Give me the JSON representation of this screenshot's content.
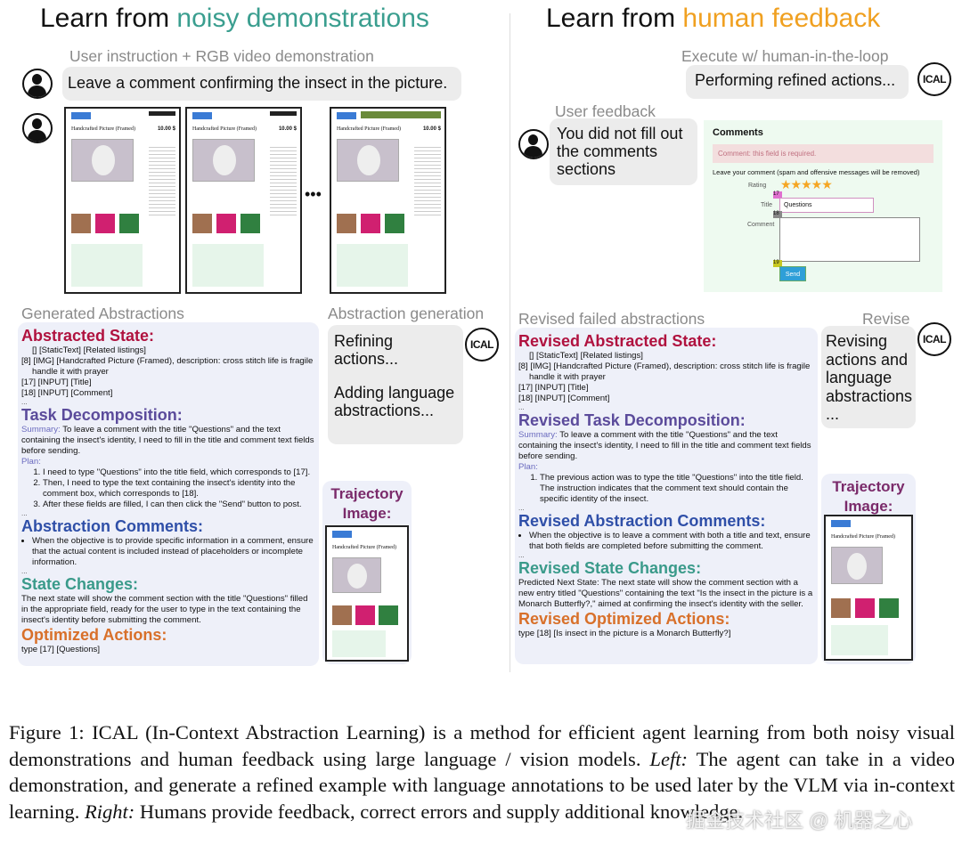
{
  "left": {
    "title_prefix": "Learn from ",
    "title_highlight": "noisy demonstrations",
    "instruction_label": "User instruction + RGB video demonstration",
    "instruction": "Leave a comment confirming the insect in the picture.",
    "ellipsis": "•••",
    "thumb_title": "Handcrafted Picture (Framed)",
    "thumb_price": "10.00 $",
    "generated_label": "Generated Abstractions",
    "generation_label": "Abstraction generation",
    "generation_bubble": [
      "Refining actions...",
      "Adding language abstractions..."
    ],
    "abstracted_state": {
      "heading": "Abstracted State:",
      "lines": [
        "[] [StaticText] [Related listings]",
        "[8] [IMG] [Handcrafted Picture (Framed), description: cross stitch life is fragile handle it with prayer",
        "[17] [INPUT] [Title]",
        "[18] [INPUT] [Comment]"
      ]
    },
    "task": {
      "heading": "Task Decomposition:",
      "summary_label": "Summary:",
      "summary": "To leave a comment with the title \"Questions\" and the text containing the insect's identity, I need to fill in the title and comment text fields before sending.",
      "plan_label": "Plan:",
      "plan": [
        "I need to type \"Questions\" into the title field, which corresponds to [17].",
        "Then, I need to type the text containing the insect's identity into the comment box, which corresponds to [18].",
        "After these fields are filled, I can then click the \"Send\" button to post."
      ]
    },
    "comments": {
      "heading": "Abstraction Comments:",
      "bullet": "When the objective is to provide specific information in a comment, ensure that the actual content is included instead of placeholders or incomplete information."
    },
    "state_changes": {
      "heading": "State Changes:",
      "text": "The next state will show the comment section with the title \"Questions\" filled in the appropriate field, ready for the user to type in the text containing the insect's identity before submitting the comment."
    },
    "actions": {
      "heading": "Optimized Actions:",
      "text": "type [17] [Questions]"
    },
    "trajectory_label": "Trajectory Image:"
  },
  "right": {
    "title_prefix": "Learn from ",
    "title_highlight": "human feedback",
    "execute_label": "Execute w/ human-in-the-loop",
    "execute_bubble": "Performing refined actions...",
    "feedback_label": "User feedback",
    "feedback": "You did not fill out the comments sections",
    "comments_screen": {
      "heading": "Comments",
      "error": "Comment: this field is required.",
      "note": "Leave your comment (spam and offensive messages will be removed)",
      "rating_label": "Rating",
      "stars": 5,
      "title_label": "Title",
      "title_value": "Questions",
      "comment_label": "Comment",
      "send": "Send",
      "tags": [
        "17",
        "18",
        "19"
      ]
    },
    "revised_label": "Revised failed abstractions",
    "revise_label": "Revise",
    "revise_bubble": "Revising actions and language abstractions ...",
    "abstracted_state": {
      "heading": "Revised Abstracted State:",
      "lines": [
        "[] [StaticText] [Related listings]",
        "[8] [IMG] [Handcrafted Picture (Framed), description: cross stitch life is fragile handle it with prayer",
        "[17] [INPUT] [Title]",
        "[18] [INPUT] [Comment]"
      ]
    },
    "task": {
      "heading": "Revised Task Decomposition:",
      "summary_label": "Summary:",
      "summary": "To leave a comment with the title \"Questions\" and the text containing the insect's identity, I need to fill in the title and comment text fields before sending.",
      "plan_label": "Plan:",
      "plan": [
        "The previous action was to type the title \"Questions\" into the title field. The instruction indicates that the comment text should contain the specific identity of the insect."
      ]
    },
    "comments": {
      "heading": "Revised Abstraction Comments:",
      "bullet": "When the objective is to leave a comment with both a title and text, ensure that both fields are completed before submitting the comment."
    },
    "state_changes": {
      "heading": "Revised State Changes:",
      "text": "Predicted Next State: The next state will show the comment section with a new entry titled \"Questions\" containing the text \"Is the insect in the picture is a Monarch Butterfly?,\" aimed at confirming the insect's identity with the seller."
    },
    "actions": {
      "heading": "Revised Optimized Actions:",
      "text": "type [18] [Is insect in the picture is a Monarch Butterfly?]"
    },
    "trajectory_label": "Trajectory Image:"
  },
  "logo_text": "ICAL",
  "ellipsis_small": "...",
  "caption": {
    "prefix": "Figure 1: ICAL (In-Context Abstraction Learning) is a method for efficient agent learning from both noisy visual demonstrations and human feedback using large language / vision models. ",
    "left_label": "Left:",
    "left_text": " The agent can take in a video demonstration, and generate a refined example with language annotations to be used later by the VLM via in-context learning. ",
    "right_label": "Right:",
    "right_text": " Humans provide feedback, correct errors and supply additional knowledge."
  },
  "watermark": "掘金技术社区 @ 机器之心",
  "colors": {
    "teal": "#3a9e8f",
    "orange": "#f0a020",
    "state": "#b0123f",
    "task": "#5b4b9b",
    "comments": "#2f4fa8",
    "changes": "#3a9a8a",
    "actions": "#d8702a",
    "trajectory": "#7a2a6a"
  }
}
